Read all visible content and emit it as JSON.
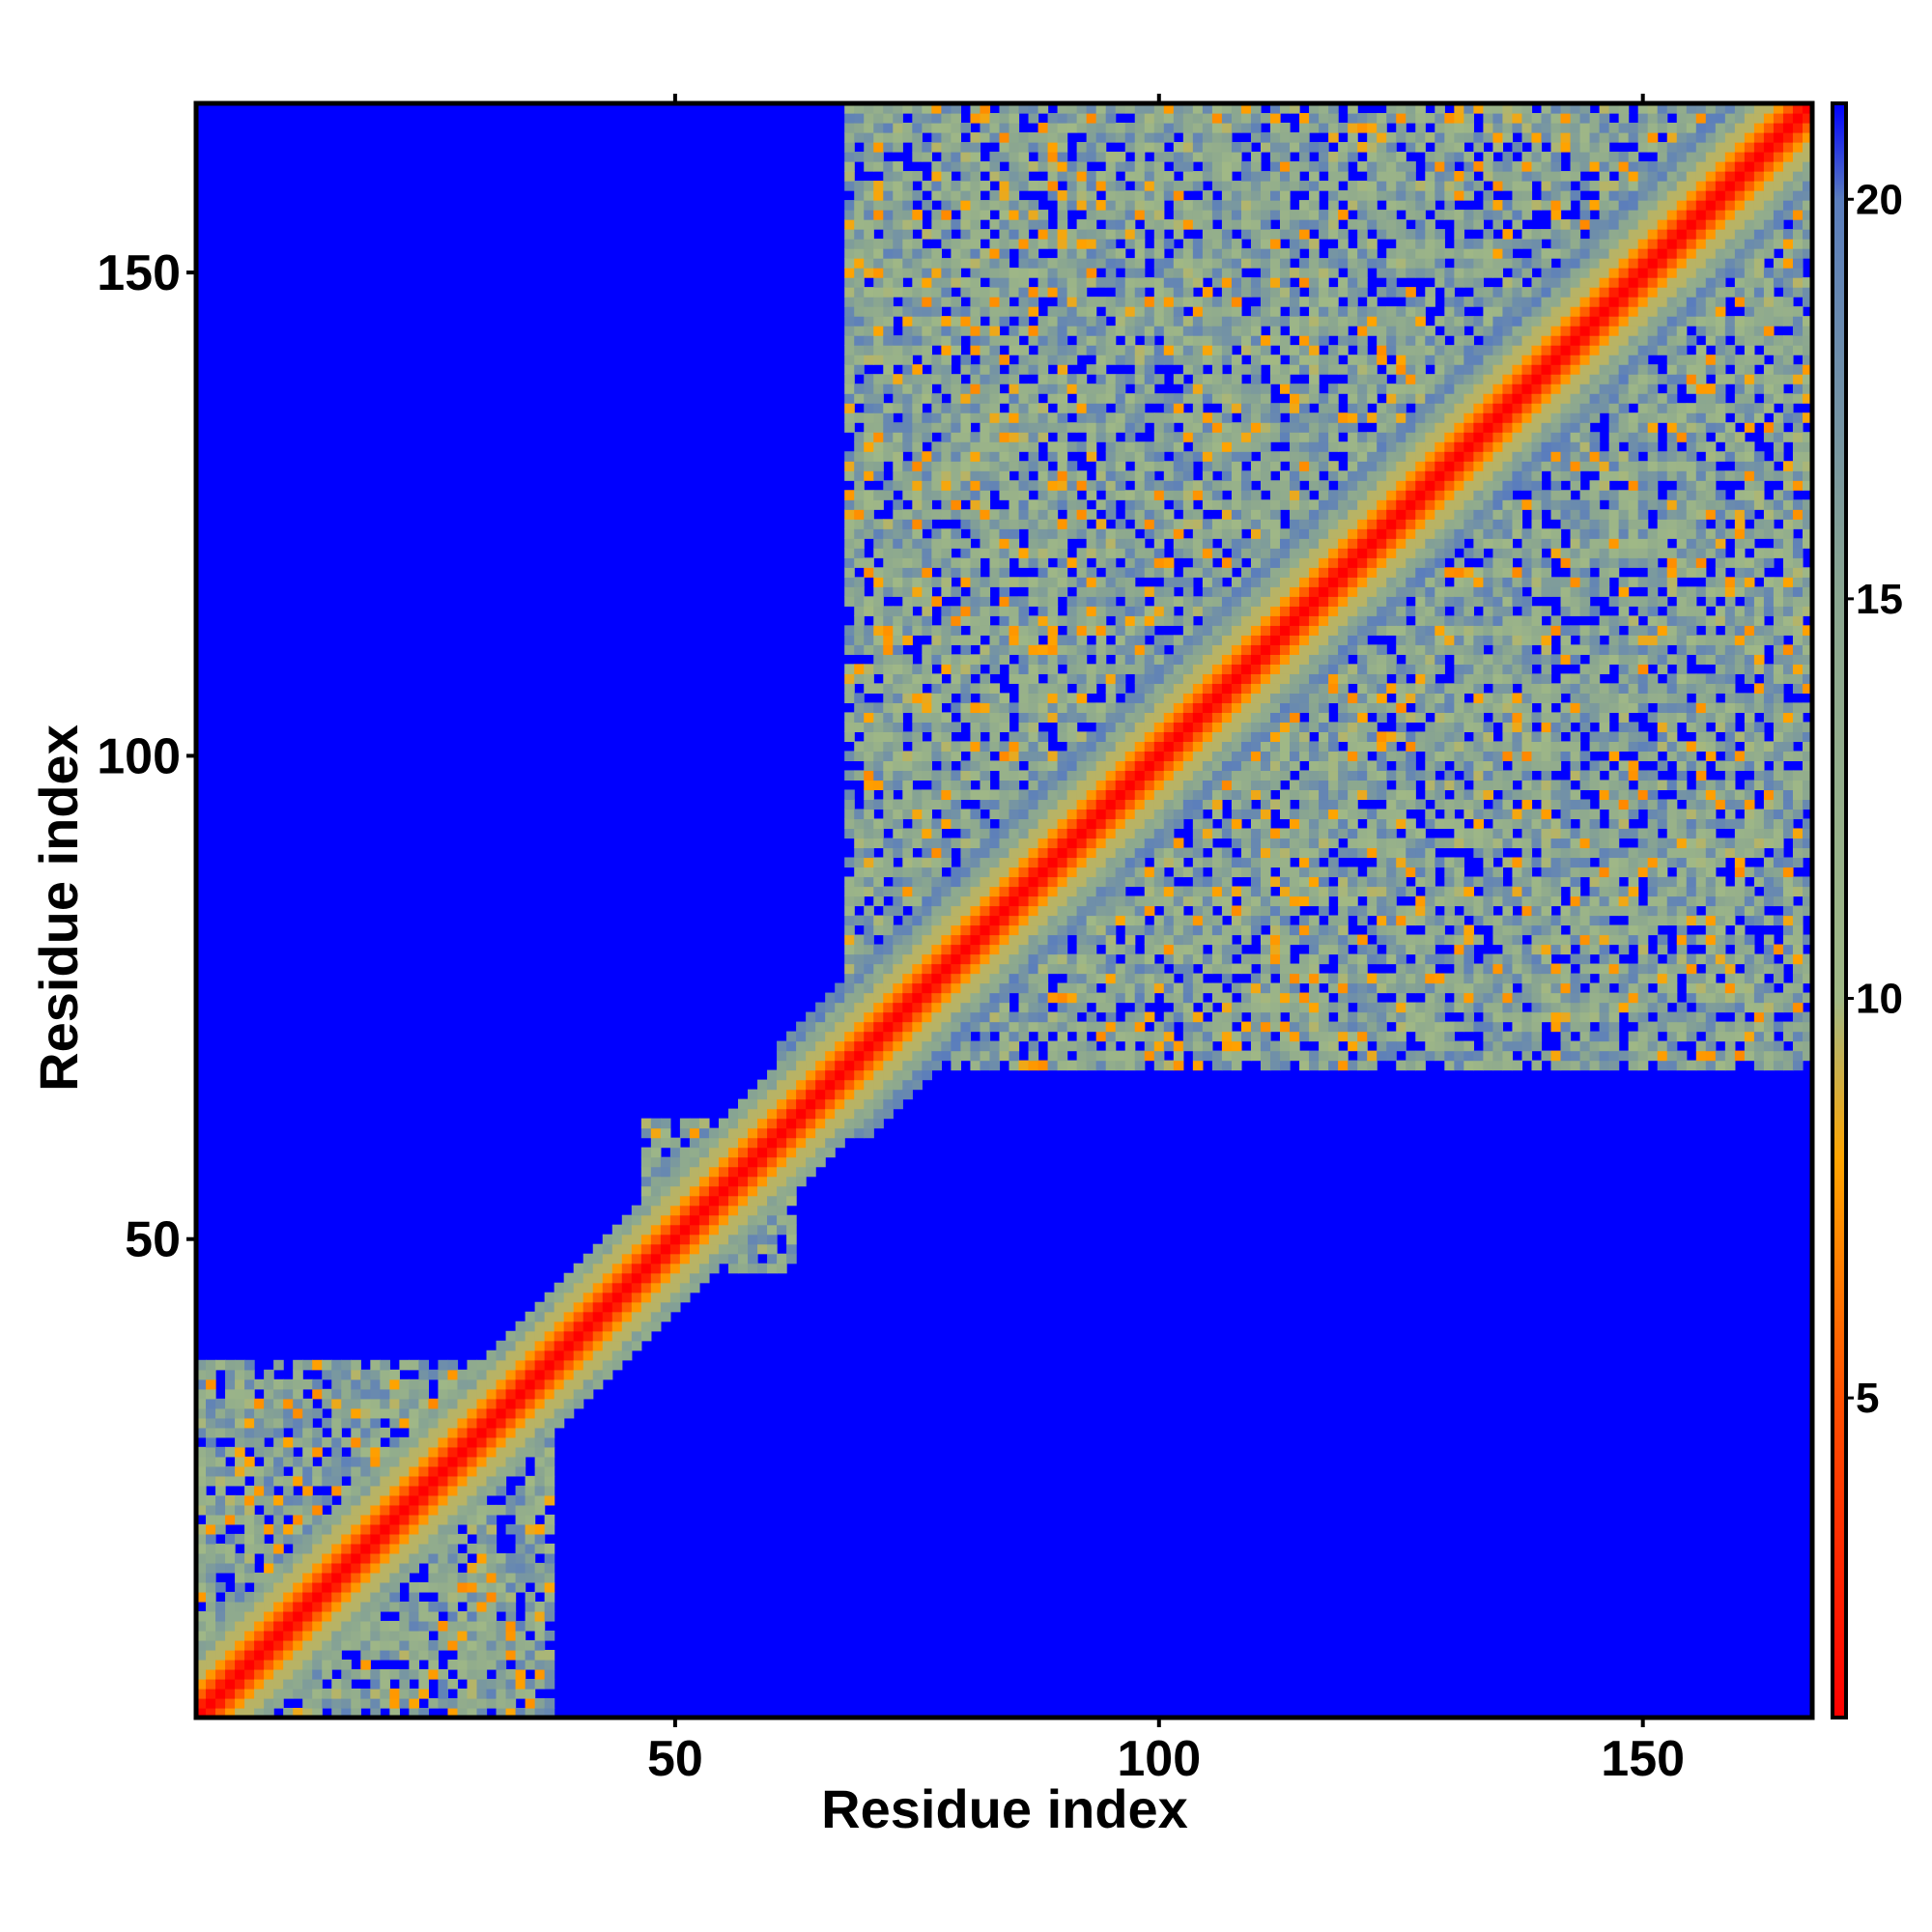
{
  "chart_data": {
    "type": "heatmap",
    "title": "",
    "xlabel": "Residue index",
    "ylabel": "Residue index",
    "x_range": [
      1,
      167
    ],
    "y_range": [
      1,
      167
    ],
    "x_ticks": [
      50,
      100,
      150
    ],
    "y_ticks": [
      50,
      100,
      150
    ],
    "x_tick_labels": [
      "50",
      "100",
      "150"
    ],
    "y_tick_labels": [
      "50",
      "100",
      "150"
    ],
    "colorbar": {
      "range": [
        1,
        21.2
      ],
      "ticks": [
        5,
        10,
        15,
        20
      ],
      "tick_labels": [
        "5",
        "10",
        "15",
        "20"
      ],
      "colors": [
        {
          "value": 1,
          "color": "#ff0000"
        },
        {
          "value": 5,
          "color": "#ff5000"
        },
        {
          "value": 8,
          "color": "#ffa500"
        },
        {
          "value": 10,
          "color": "#a0b886"
        },
        {
          "value": 15,
          "color": "#8aa690"
        },
        {
          "value": 20,
          "color": "#5a7dbd"
        },
        {
          "value": 21.2,
          "color": "#0000ff"
        }
      ]
    },
    "background_color": "#0000ff",
    "description_of_features": {
      "diagonal_band": {
        "start": 1,
        "end": 167,
        "core_value": 1
      },
      "contact_blocks": [
        {
          "x": [
            1,
            37
          ],
          "y": [
            1,
            37
          ]
        },
        {
          "x": [
            47,
            62
          ],
          "y": [
            47,
            62
          ]
        },
        {
          "x": [
            68,
            167
          ],
          "y": [
            68,
            167
          ]
        },
        {
          "x": [
            70,
            100
          ],
          "y": [
            130,
            167
          ]
        },
        {
          "x": [
            130,
            167
          ],
          "y": [
            70,
            100
          ]
        }
      ]
    }
  }
}
